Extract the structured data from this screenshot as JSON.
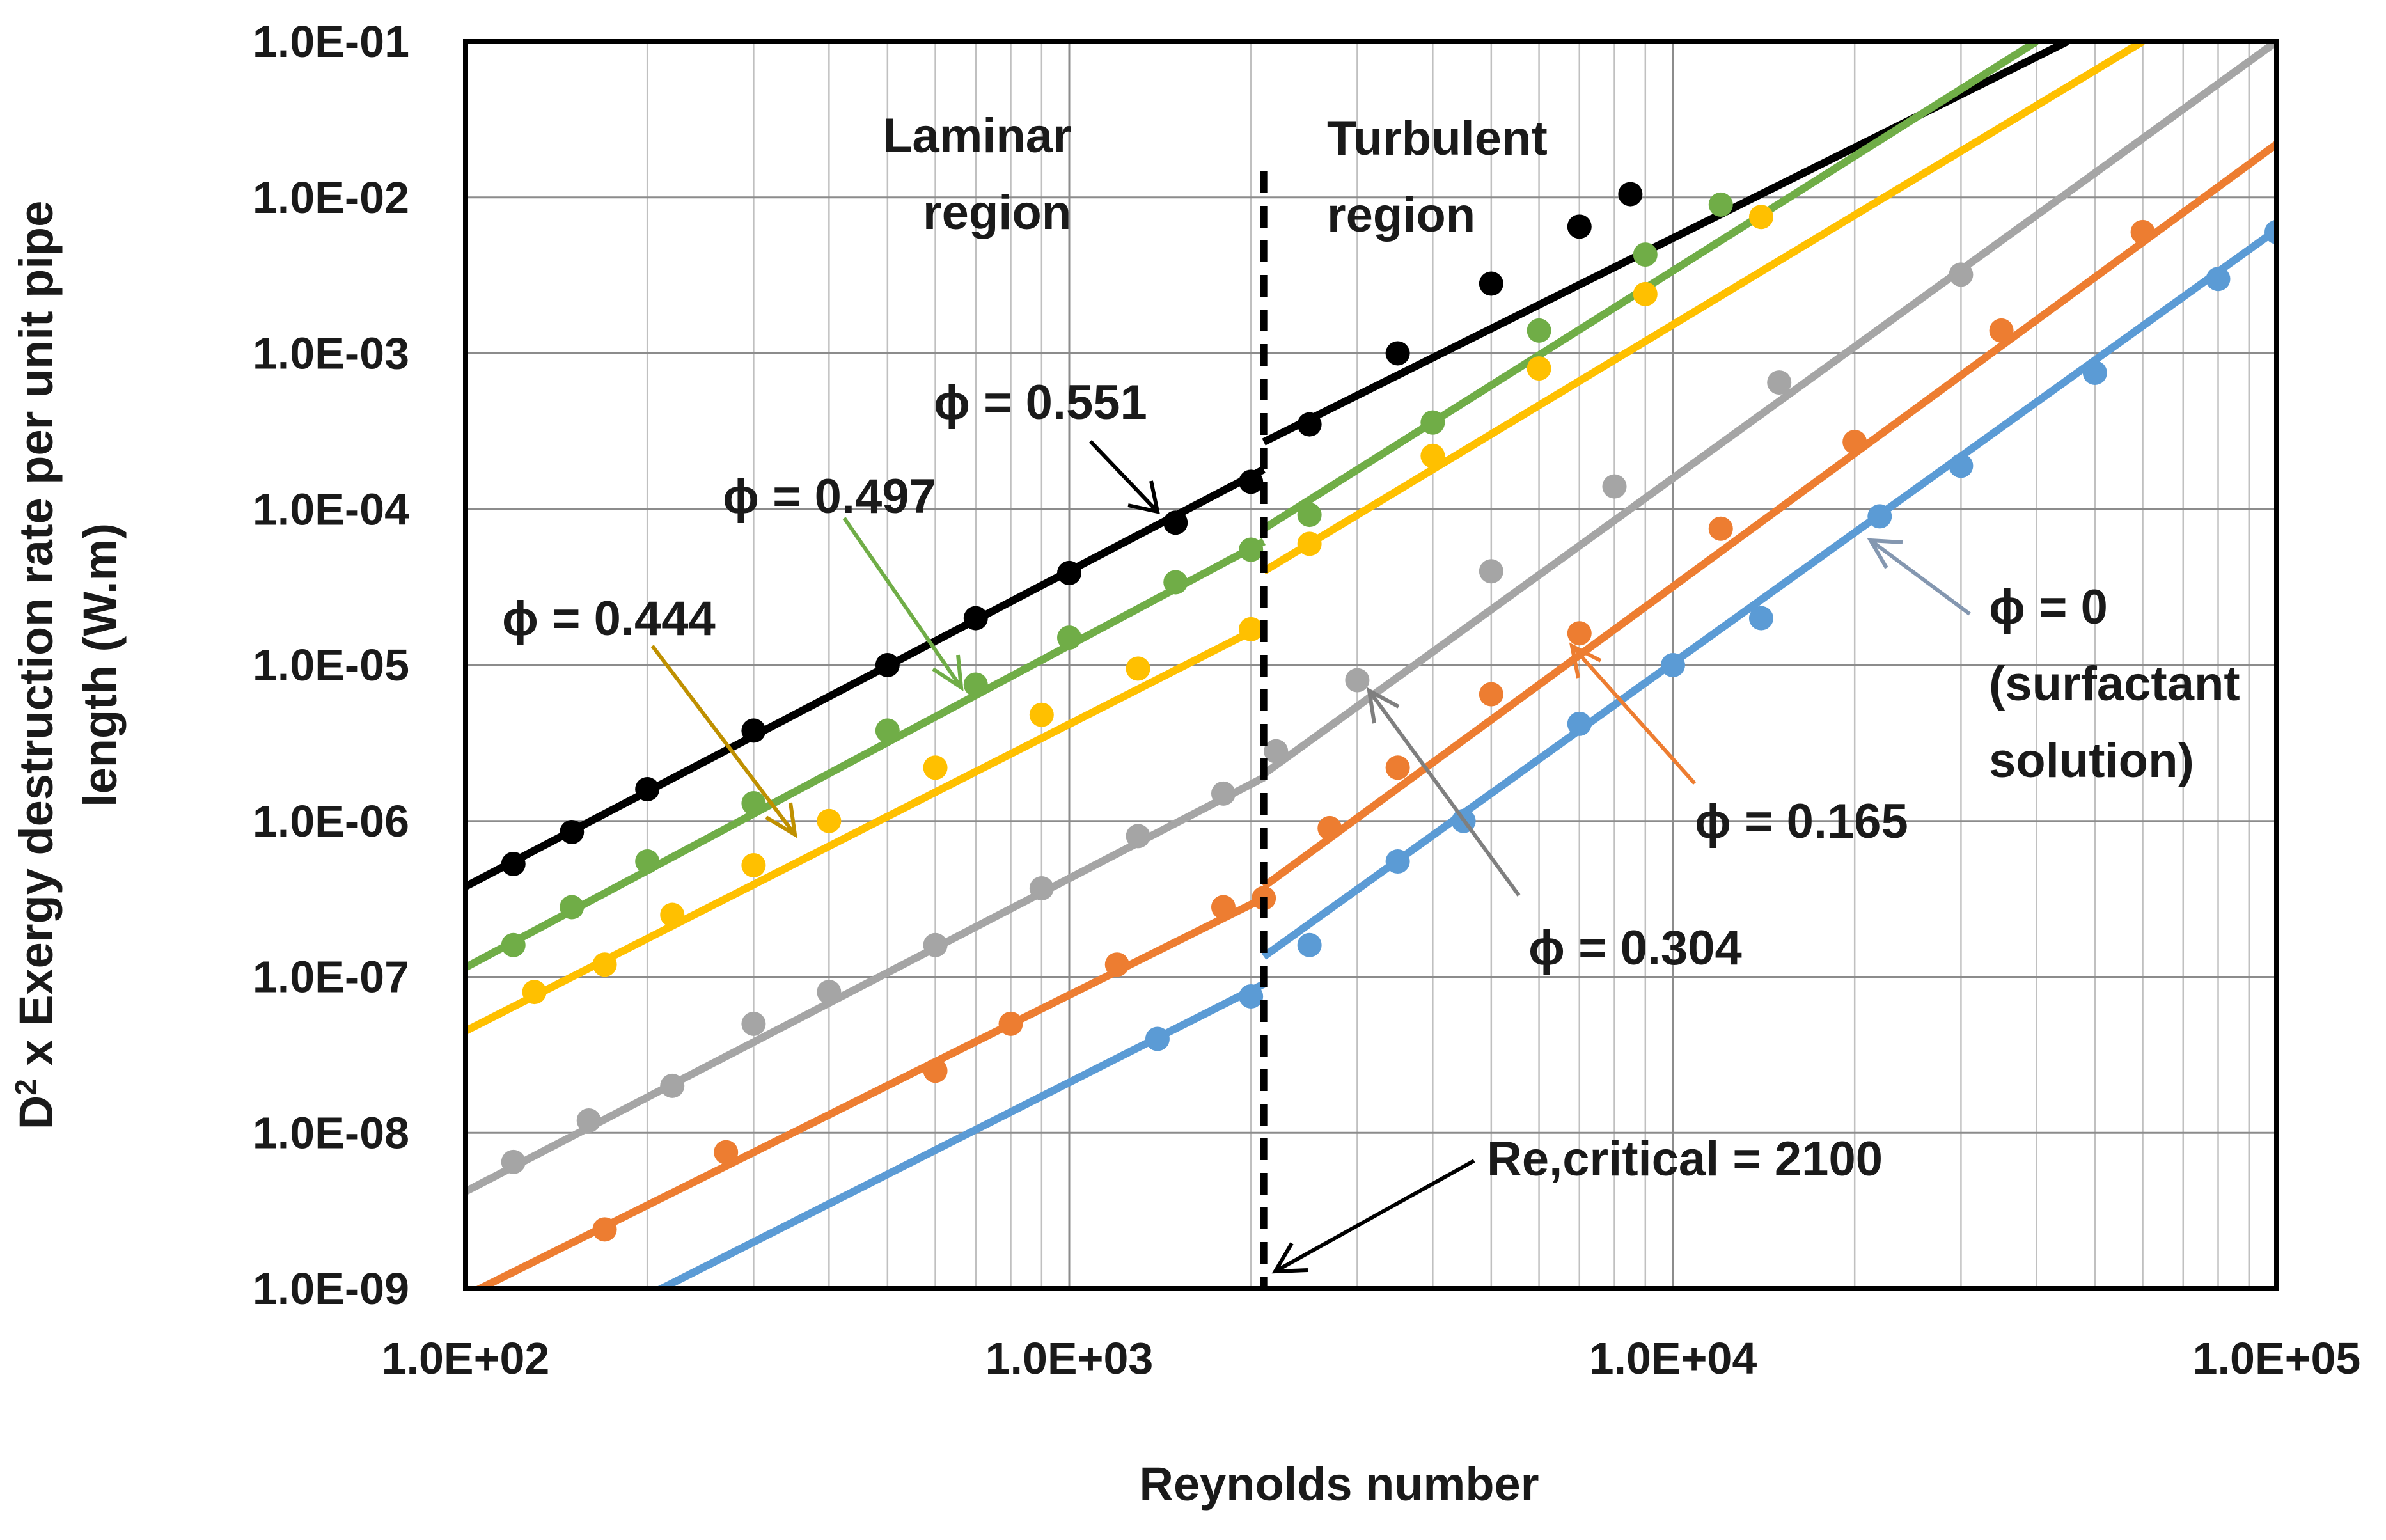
{
  "chart_data": {
    "type": "scatter",
    "title": "",
    "xlabel": "Reynolds number",
    "ylabel_prefix": "D",
    "ylabel_sup": "2",
    "ylabel_line1": " x Exergy destruction rate per unit pipe",
    "ylabel_line2": "length (W.m)",
    "x_scale": "log",
    "y_scale": "log",
    "xlim": [
      100,
      100000
    ],
    "ylim": [
      1e-09,
      0.1
    ],
    "x_ticks": [
      100,
      1000,
      10000,
      100000
    ],
    "x_tick_labels": [
      "1.0E+02",
      "1.0E+03",
      "1.0E+04",
      "1.0E+05"
    ],
    "y_ticks": [
      1e-09,
      1e-08,
      1e-07,
      1e-06,
      1e-05,
      0.0001,
      0.001,
      0.01,
      0.1
    ],
    "y_tick_labels": [
      "1.0E-09",
      "1.0E-08",
      "1.0E-07",
      "1.0E-06",
      "1.0E-05",
      "1.0E-04",
      "1.0E-03",
      "1.0E-02",
      "1.0E-01"
    ],
    "grid": true,
    "critical_re": 2100,
    "series": [
      {
        "name": "φ = 0.551",
        "color": "#000000",
        "laminar_line": [
          [
            100,
            3.8e-07
          ],
          [
            2100,
            0.00018
          ]
        ],
        "turbulent_line": [
          [
            2100,
            0.00027
          ],
          [
            45000,
            0.1
          ]
        ],
        "points_re": [
          120,
          150,
          200,
          300,
          500,
          700,
          1000,
          1500,
          2000,
          2500,
          3500,
          5000,
          7000,
          8500
        ],
        "points_val": [
          5.3e-07,
          8.5e-07,
          1.6e-06,
          3.8e-06,
          1e-05,
          2e-05,
          3.9e-05,
          8.2e-05,
          0.00015,
          0.00035,
          0.001,
          0.0028,
          0.0065,
          0.0105
        ]
      },
      {
        "name": "φ = 0.497",
        "color": "#70ad47",
        "laminar_line": [
          [
            100,
            1.15e-07
          ],
          [
            2100,
            6.2e-05
          ]
        ],
        "turbulent_line": [
          [
            2100,
            7.5e-05
          ],
          [
            40000,
            0.1
          ]
        ],
        "points_re": [
          120,
          150,
          200,
          300,
          500,
          700,
          1000,
          1500,
          2000,
          2500,
          4000,
          6000,
          9000,
          12000
        ],
        "points_val": [
          1.6e-07,
          2.8e-07,
          5.5e-07,
          1.3e-06,
          3.8e-06,
          7.5e-06,
          1.5e-05,
          3.4e-05,
          5.5e-05,
          9.2e-05,
          0.00036,
          0.0014,
          0.0043,
          0.009
        ]
      },
      {
        "name": "φ = 0.444",
        "color": "#ffc000",
        "laminar_line": [
          [
            100,
            4.5e-08
          ],
          [
            2100,
            1.8e-05
          ]
        ],
        "turbulent_line": [
          [
            2100,
            4e-05
          ],
          [
            60000,
            0.1
          ]
        ],
        "points_re": [
          130,
          170,
          220,
          300,
          400,
          600,
          900,
          1300,
          2000,
          2500,
          4000,
          6000,
          9000,
          14000
        ],
        "points_val": [
          8e-08,
          1.2e-07,
          2.5e-07,
          5.2e-07,
          1e-06,
          2.2e-06,
          4.8e-06,
          9.5e-06,
          1.7e-05,
          6e-05,
          0.00022,
          0.0008,
          0.0024,
          0.0075
        ]
      },
      {
        "name": "φ = 0.304",
        "color": "#a5a5a5",
        "laminar_line": [
          [
            100,
            4.2e-09
          ],
          [
            2100,
            1.9e-06
          ]
        ],
        "turbulent_line": [
          [
            2100,
            2e-06
          ],
          [
            100000,
            0.1
          ]
        ],
        "points_re": [
          120,
          160,
          220,
          300,
          400,
          600,
          900,
          1300,
          1800,
          2200,
          3000,
          5000,
          8000,
          15000,
          30000
        ],
        "points_val": [
          6.5e-09,
          1.2e-08,
          2e-08,
          5e-08,
          8e-08,
          1.6e-07,
          3.7e-07,
          8e-07,
          1.5e-06,
          2.8e-06,
          8e-06,
          4e-05,
          0.00014,
          0.00065,
          0.0032
        ]
      },
      {
        "name": "φ = 0.165",
        "color": "#ed7d31",
        "laminar_line": [
          [
            100,
            9e-10
          ],
          [
            2100,
            3.2e-07
          ]
        ],
        "turbulent_line": [
          [
            2100,
            3.8e-07
          ],
          [
            100000,
            0.022
          ]
        ],
        "points_re": [
          170,
          270,
          600,
          800,
          1200,
          1800,
          2100,
          2700,
          3500,
          5000,
          7000,
          12000,
          20000,
          35000,
          60000
        ],
        "points_val": [
          2.4e-09,
          7.5e-09,
          2.5e-08,
          5e-08,
          1.2e-07,
          2.8e-07,
          3.2e-07,
          9e-07,
          2.2e-06,
          6.5e-06,
          1.6e-05,
          7.5e-05,
          0.00027,
          0.0014,
          0.006
        ]
      },
      {
        "name": "φ = 0",
        "color": "#5b9bd5",
        "laminar_line": [
          [
            200,
            9e-10
          ],
          [
            2100,
            9e-08
          ]
        ],
        "turbulent_line": [
          [
            2100,
            1.35e-07
          ],
          [
            100000,
            0.0062
          ]
        ],
        "points_re": [
          1400,
          2000,
          2500,
          3500,
          4500,
          7000,
          10000,
          14000,
          22000,
          30000,
          50000,
          80000,
          100000
        ],
        "points_val": [
          4e-08,
          7.5e-08,
          1.6e-07,
          5.5e-07,
          1e-06,
          4.2e-06,
          1e-05,
          2e-05,
          9e-05,
          0.00019,
          0.00075,
          0.003,
          0.006
        ]
      }
    ],
    "annotations": {
      "laminar": [
        "Laminar",
        "region"
      ],
      "turbulent": [
        "Turbulent",
        "region"
      ],
      "phi_551": "ϕ = 0.551",
      "phi_497": "ϕ = 0.497",
      "phi_444": "ϕ = 0.444",
      "phi_304": "ϕ = 0.304",
      "phi_165": "ϕ = 0.165",
      "phi_0": [
        "ϕ = 0",
        "(surfactant",
        "solution)"
      ],
      "re_critical": "Re,critical = 2100"
    }
  }
}
